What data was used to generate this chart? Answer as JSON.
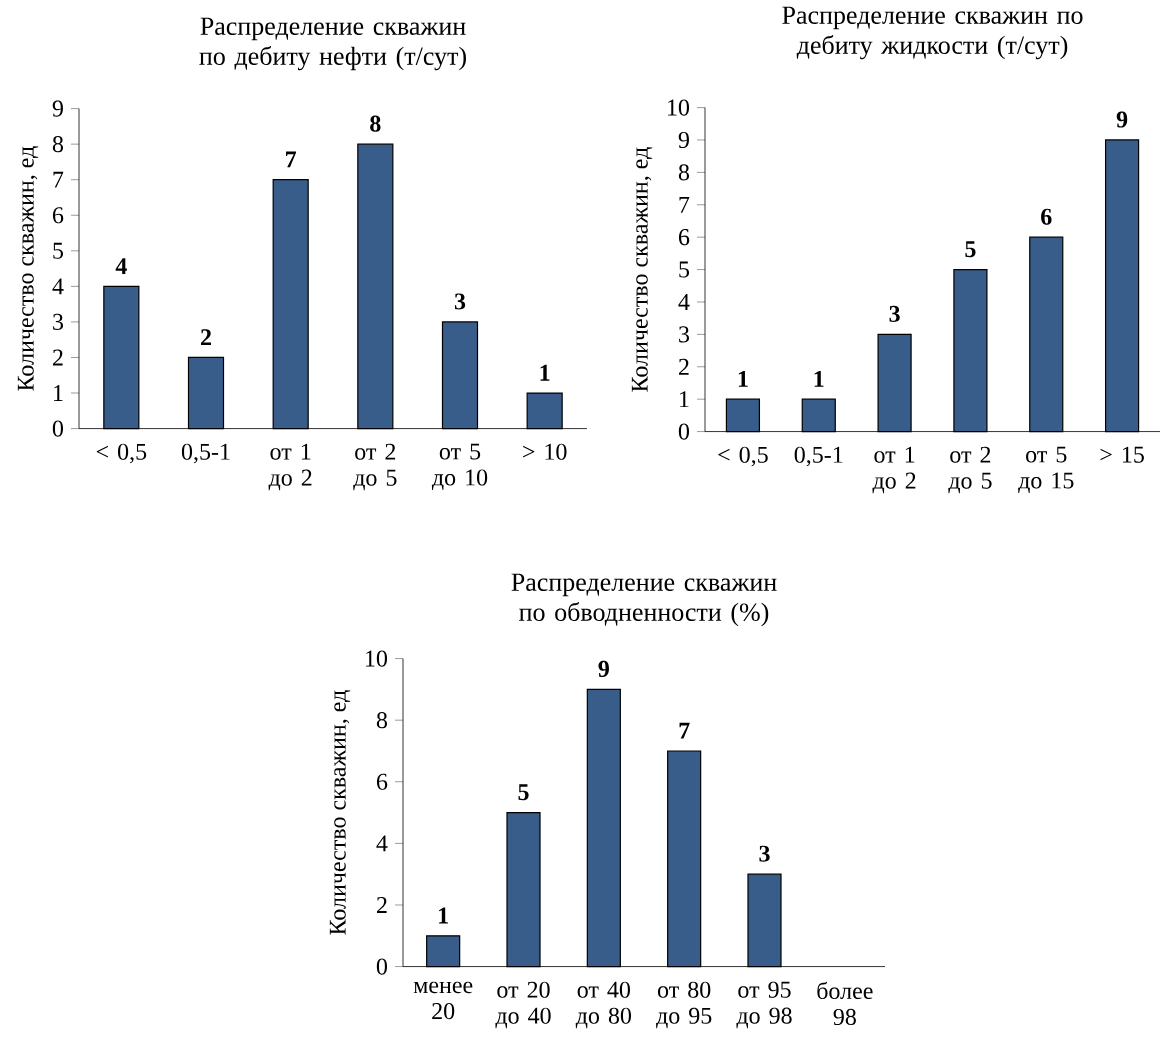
{
  "chart_data": [
    {
      "type": "bar",
      "title": "Распределение скважин по дебиту нефти (т/сут)",
      "ylabel": "Количество скважин, ед",
      "categories": [
        "< 0,5",
        "0,5-1",
        "от 1 до 2",
        "от 2 до 5",
        "от 5 до 10",
        "> 10"
      ],
      "values": [
        4,
        2,
        7,
        8,
        3,
        1
      ],
      "color": "#385d8a",
      "ylim": [
        0,
        9
      ],
      "yticks": [
        0,
        1,
        2,
        3,
        4,
        5,
        6,
        7,
        8,
        9
      ],
      "data_labels": true
    },
    {
      "type": "bar",
      "title": "Распределение скважин по дебиту жидкости (т/сут)",
      "ylabel": "Количество скважин, ед",
      "categories": [
        "< 0,5",
        "0,5-1",
        "от 1 до 2",
        "от 2 до 5",
        "от 5 до 15",
        "> 15"
      ],
      "values": [
        1,
        1,
        3,
        5,
        6,
        9
      ],
      "color": "#385d8a",
      "ylim": [
        0,
        10
      ],
      "yticks": [
        0,
        1,
        2,
        3,
        4,
        5,
        6,
        7,
        8,
        9,
        10
      ],
      "data_labels": true
    },
    {
      "type": "bar",
      "title": "Распределение скважин по обводненности (%)",
      "ylabel": "Количество скважин, ед",
      "categories": [
        "менее 20",
        "от 20 до 40",
        "от 40 до 80",
        "от 80 до 95",
        "от 95 до 98",
        "более 98"
      ],
      "values": [
        1,
        5,
        9,
        7,
        3,
        null
      ],
      "color": "#385d8a",
      "ylim": [
        0,
        10
      ],
      "yticks": [
        0,
        2,
        4,
        6,
        8,
        10
      ],
      "data_labels": true
    }
  ]
}
